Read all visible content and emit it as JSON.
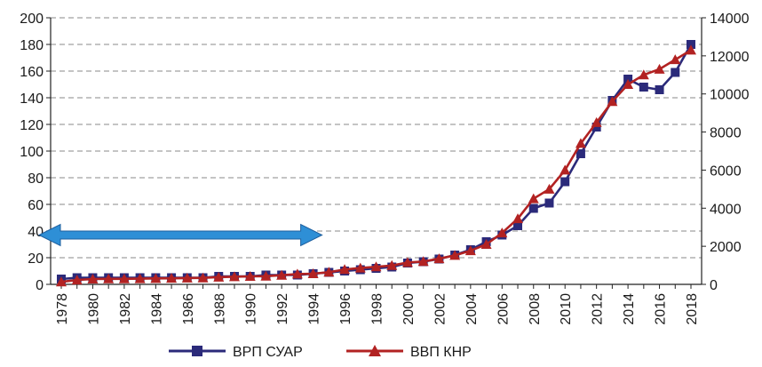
{
  "chart_data": {
    "type": "line",
    "x": [
      1978,
      1979,
      1980,
      1981,
      1982,
      1983,
      1984,
      1985,
      1986,
      1987,
      1988,
      1989,
      1990,
      1991,
      1992,
      1993,
      1994,
      1995,
      1996,
      1997,
      1998,
      1999,
      2000,
      2001,
      2002,
      2003,
      2004,
      2005,
      2006,
      2007,
      2008,
      2009,
      2010,
      2011,
      2012,
      2013,
      2014,
      2015,
      2016,
      2017,
      2018
    ],
    "x_tick_labels": [
      "1978",
      "1980",
      "1982",
      "1984",
      "1986",
      "1988",
      "1990",
      "1992",
      "1994",
      "1996",
      "1998",
      "2000",
      "2002",
      "2004",
      "2006",
      "2008",
      "2010",
      "2012",
      "2014",
      "2016",
      "2018"
    ],
    "y_left": {
      "ylim": [
        0,
        200
      ],
      "ticks": [
        "0",
        "20",
        "40",
        "60",
        "80",
        "100",
        "120",
        "140",
        "160",
        "180",
        "200"
      ]
    },
    "y_right": {
      "ylim": [
        0,
        14000
      ],
      "ticks": [
        "0",
        "2000",
        "4000",
        "6000",
        "8000",
        "10000",
        "12000",
        "14000"
      ]
    },
    "series": [
      {
        "name": "ВРП СУАР",
        "axis": "left",
        "color": "#2b2a7a",
        "marker": "square",
        "values": [
          4,
          5,
          5,
          5,
          5,
          5,
          5,
          5,
          5,
          5,
          6,
          6,
          6,
          7,
          7,
          7,
          8,
          9,
          10,
          11,
          12,
          13,
          16,
          17,
          19,
          22,
          26,
          32,
          37,
          44,
          57,
          61,
          77,
          98,
          118,
          138,
          154,
          148,
          146,
          159,
          180
        ]
      },
      {
        "name": "ВВП КНР",
        "axis": "right",
        "color": "#b22222",
        "marker": "triangle",
        "values": [
          130,
          230,
          280,
          290,
          290,
          300,
          310,
          320,
          330,
          340,
          380,
          400,
          420,
          430,
          480,
          540,
          560,
          640,
          780,
          860,
          920,
          990,
          1150,
          1200,
          1350,
          1520,
          1770,
          2100,
          2700,
          3450,
          4500,
          5000,
          6000,
          7400,
          8500,
          9600,
          10500,
          11000,
          11300,
          11800,
          12300
        ]
      }
    ],
    "annotations": [
      {
        "type": "double-arrow",
        "from_x": 1978,
        "to_x": 1994,
        "at_y_left": 37,
        "color": "#2e8fd6"
      }
    ],
    "grid": "horizontal-dashed",
    "legend": "bottom-center",
    "title": "",
    "xlabel": "",
    "ylabel": ""
  }
}
